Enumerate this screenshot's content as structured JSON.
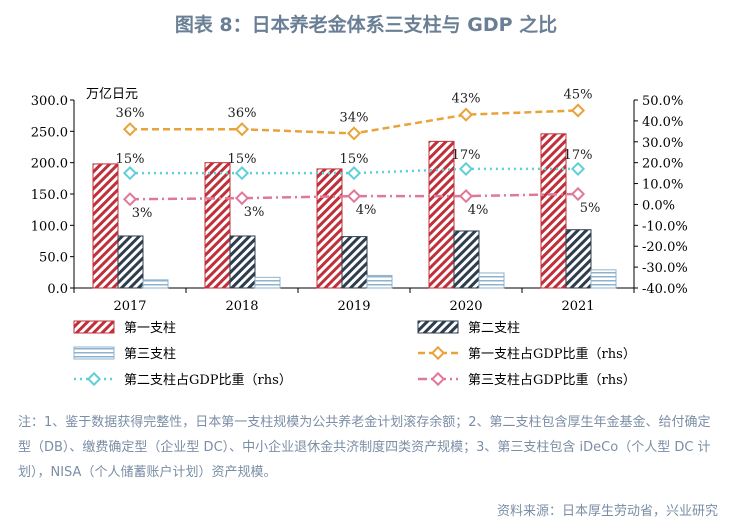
{
  "title": "图表 8：日本养老金体系三支柱与 GDP 之比",
  "note": "注：1、鉴于数据获得完整性，日本第一支柱规模为公共养老金计划滚存余额；2、第二支柱包含厚生年金基金、给付确定型（DB）、缴费确定型（企业型 DC）、中小企业退休金共济制度四类资产规模；3、第三支柱包含 iDeCo（个人型 DC 计划），NISA（个人储蓄账户计划）资产规模。",
  "source": "资料来源：日本厚生劳动省，兴业研究",
  "colors": {
    "pillar1": "#c0303a",
    "pillar2": "#2f3e4e",
    "pillar3": "#8fb3cc",
    "line1": "#e8a33a",
    "line2": "#5fd0d8",
    "line3": "#e0789a"
  },
  "chart_data": {
    "type": "bar",
    "categories": [
      "2017",
      "2018",
      "2019",
      "2020",
      "2021"
    ],
    "left_axis": {
      "label": "万亿日元",
      "ylim": [
        0,
        300
      ],
      "ticks": [
        "0.0",
        "50.0",
        "100.0",
        "150.0",
        "200.0",
        "250.0",
        "300.0"
      ]
    },
    "right_axis": {
      "label": "",
      "ylim": [
        -40,
        50
      ],
      "ticks": [
        "-40.0%",
        "-30.0%",
        "-20.0%",
        "-10.0%",
        "0.0%",
        "10.0%",
        "20.0%",
        "30.0%",
        "40.0%",
        "50.0%"
      ]
    },
    "series": [
      {
        "name": "第一支柱",
        "type": "bar",
        "axis": "left",
        "values": [
          198,
          200,
          190,
          234,
          246
        ]
      },
      {
        "name": "第二支柱",
        "type": "bar",
        "axis": "left",
        "values": [
          83,
          83,
          82,
          91,
          93
        ]
      },
      {
        "name": "第三支柱",
        "type": "bar",
        "axis": "left",
        "values": [
          13,
          17,
          20,
          24,
          29
        ]
      },
      {
        "name": "第一支柱占GDP比重（rhs）",
        "type": "line",
        "axis": "right",
        "values": [
          36,
          36,
          34,
          43,
          45
        ],
        "labels": [
          "36%",
          "36%",
          "34%",
          "43%",
          "45%"
        ]
      },
      {
        "name": "第二支柱占GDP比重（rhs）",
        "type": "line",
        "axis": "right",
        "values": [
          15,
          15,
          15,
          17,
          17
        ],
        "labels": [
          "15%",
          "15%",
          "15%",
          "17%",
          "17%"
        ]
      },
      {
        "name": "第三支柱占GDP比重（rhs）",
        "type": "line",
        "axis": "right",
        "values": [
          2.5,
          3,
          4,
          4,
          5
        ],
        "labels": [
          "3%",
          "3%",
          "4%",
          "4%",
          "5%"
        ]
      }
    ],
    "legend_placement": "bottom"
  }
}
